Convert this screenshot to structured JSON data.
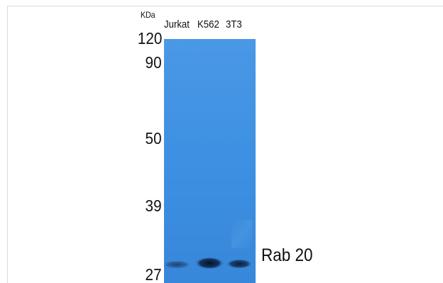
{
  "unit": "KDa",
  "lanes": [
    {
      "label": "Jurkat"
    },
    {
      "label": "K562"
    },
    {
      "label": "3T3"
    }
  ],
  "markers": [
    {
      "label": "120"
    },
    {
      "label": "90"
    },
    {
      "label": "50"
    },
    {
      "label": "39"
    },
    {
      "label": "27"
    }
  ],
  "protein": "Rab 20",
  "colors": {
    "membrane": "#3c8fe0",
    "band": "#0a1e3c",
    "text": "#111111"
  }
}
